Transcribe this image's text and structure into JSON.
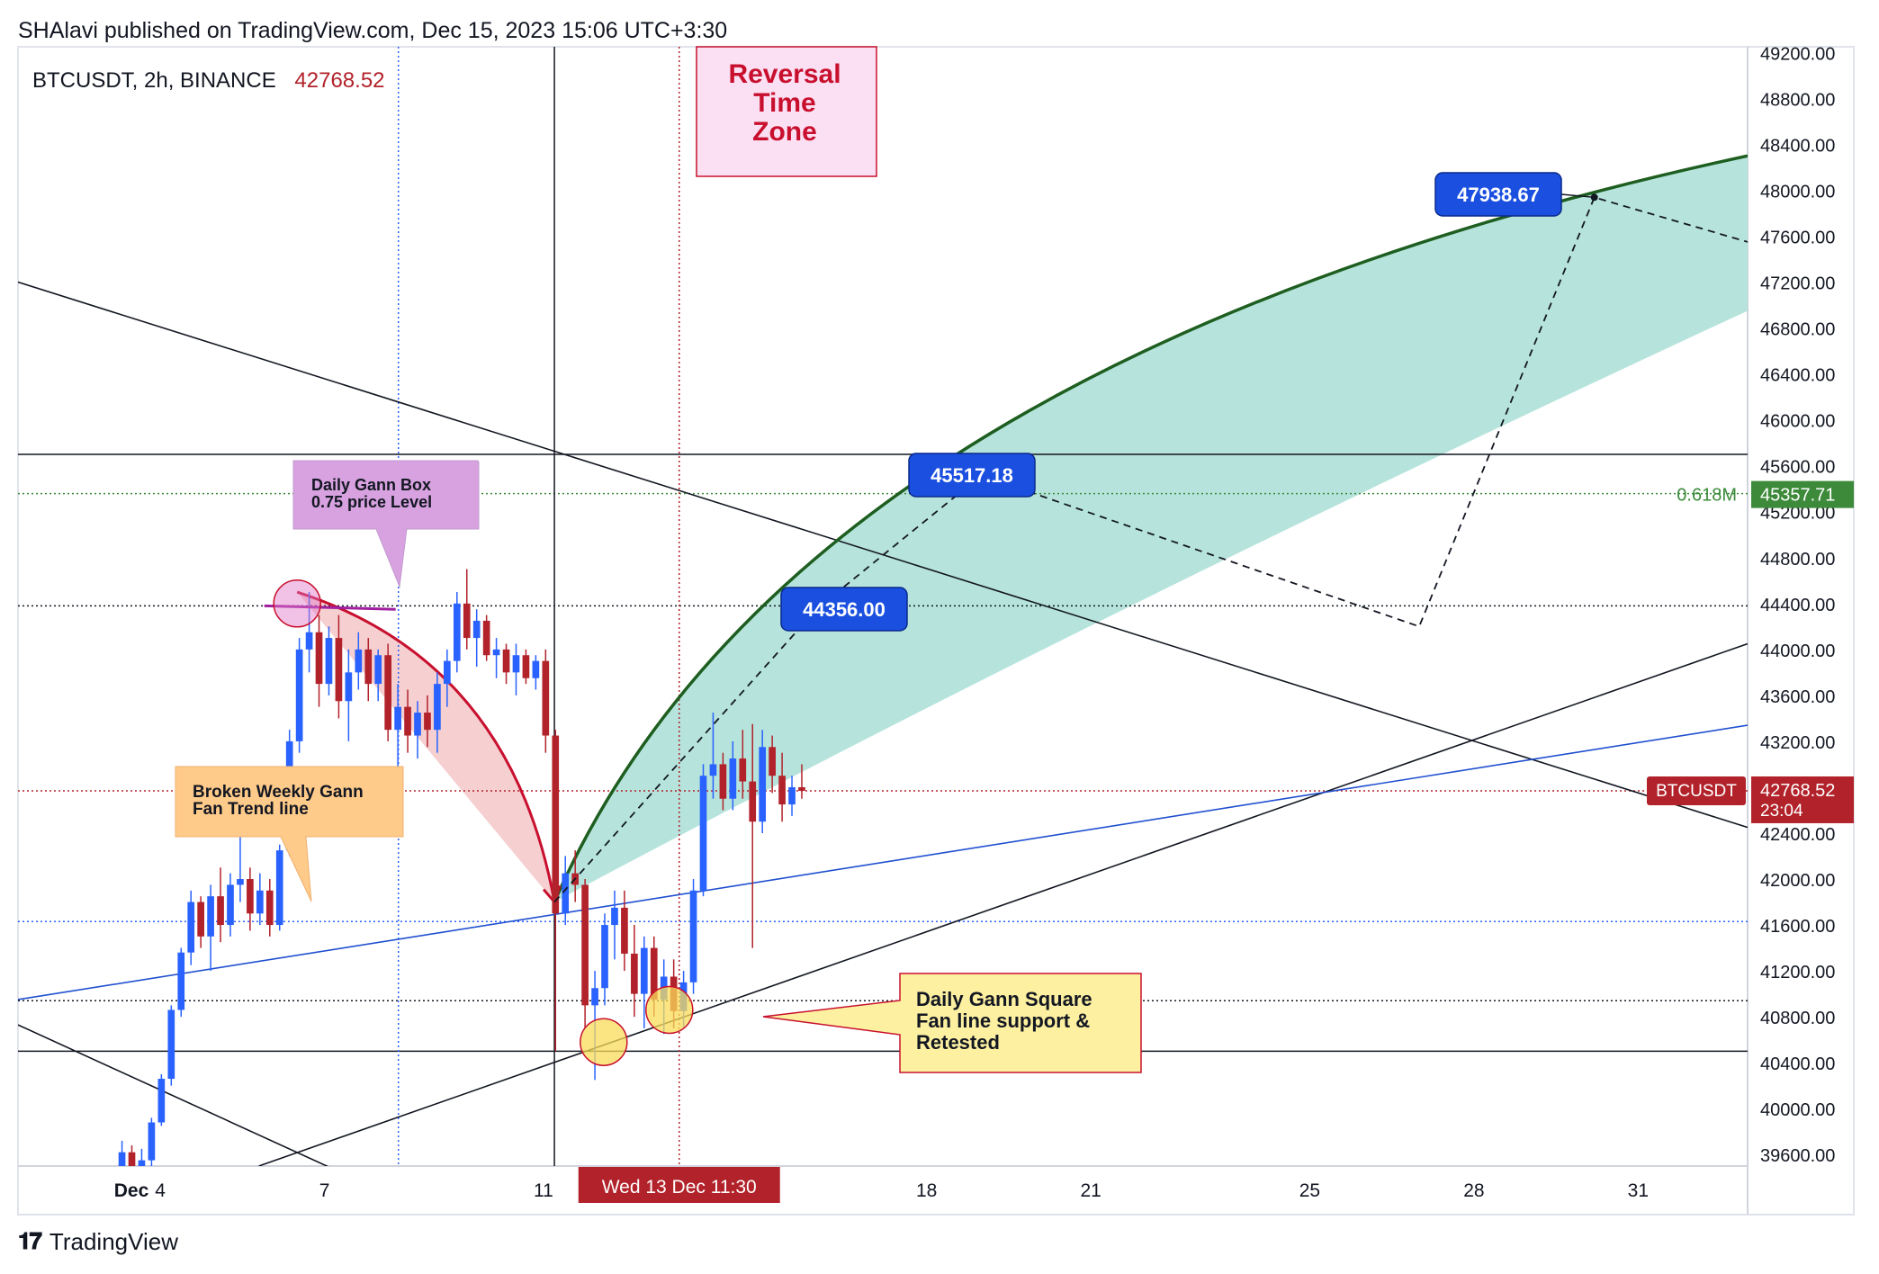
{
  "header": {
    "published": "SHAlavi published on TradingView.com, Dec 15, 2023 15:06 UTC+3:30"
  },
  "symbol": {
    "name": "BTCUSDT, 2h, BINANCE",
    "last_price": "42768.52"
  },
  "footer": {
    "brand": "TradingView",
    "logo_icon": "tradingview-logo-icon"
  },
  "colors": {
    "bull": "#2962ff",
    "bear": "#b2222a",
    "arc_green": "#1e5e20",
    "fan_fill": "#b2e3da",
    "gann_blue": "#2050d0",
    "retrace_fill": "#f4c7c9",
    "label_blue": "#1a4fe0"
  },
  "chart_data": {
    "type": "candlestick",
    "symbol": "BTCUSDT",
    "interval": "2h",
    "exchange": "BINANCE",
    "ylim": [
      39500,
      49250
    ],
    "xlim": [
      1.4,
      33.0
    ],
    "y_ticks": [
      "49200.00",
      "48800.00",
      "48400.00",
      "48000.00",
      "47600.00",
      "47200.00",
      "46800.00",
      "46400.00",
      "46000.00",
      "45600.00",
      "45200.00",
      "44800.00",
      "44400.00",
      "44000.00",
      "43600.00",
      "43200.00",
      "42800.00",
      "42400.00",
      "42000.00",
      "41600.00",
      "41200.00",
      "40800.00",
      "40400.00",
      "40000.00",
      "39600.00"
    ],
    "x_ticks": [
      {
        "label": "Dec",
        "x": 1.0
      },
      {
        "label": "4",
        "x": 4.0
      },
      {
        "label": "7",
        "x": 7.0
      },
      {
        "label": "11",
        "x": 11.0
      },
      {
        "label": "18",
        "x": 18.0
      },
      {
        "label": "21",
        "x": 21.0
      },
      {
        "label": "25",
        "x": 25.0
      },
      {
        "label": "28",
        "x": 28.0
      },
      {
        "label": "31",
        "x": 31.0
      }
    ],
    "cursor_date_label": "Wed 13 Dec   11:30",
    "cursor_x": 13.48,
    "price_badges": [
      {
        "label": "42768.52",
        "sub": "23:04",
        "y": 42768.52,
        "color": "#b2222a"
      },
      {
        "label": "45357.71",
        "y": 45357.71,
        "color": "#3c8a3a"
      }
    ],
    "symbol_badge": "BTCUSDT",
    "fib_label": {
      "text": "0.618M",
      "y": 45357.71
    },
    "horizontal_lines": [
      {
        "y": 45700,
        "style": "solid",
        "color": "#131722"
      },
      {
        "y": 44380,
        "style": "dotted",
        "color": "#131722"
      },
      {
        "y": 41630,
        "style": "dotted",
        "color": "#2962ff"
      },
      {
        "y": 40940,
        "style": "dotted",
        "color": "#131722"
      },
      {
        "y": 40500,
        "style": "solid",
        "color": "#131722"
      },
      {
        "y": 45357.71,
        "style": "dotted",
        "color": "#3c8a3a"
      },
      {
        "y": 42768.52,
        "style": "dotted",
        "color": "#b2222a"
      }
    ],
    "vertical_lines": [
      {
        "x": 8.35,
        "style": "dotted",
        "color": "#2962ff"
      },
      {
        "x": 11.2,
        "style": "solid",
        "color": "#131722"
      },
      {
        "x": 13.48,
        "style": "dotted",
        "color": "#b2222a"
      }
    ],
    "trend_lines": [
      {
        "from": [
          1.4,
          47200
        ],
        "to": [
          33.0,
          42450
        ],
        "color": "#131722"
      },
      {
        "from": [
          1.4,
          40730
        ],
        "to": [
          7.5,
          39400
        ],
        "color": "#131722"
      },
      {
        "from": [
          5.8,
          39500
        ],
        "to": [
          33.0,
          44050
        ],
        "color": "#131722"
      },
      {
        "from": [
          1.4,
          40950
        ],
        "to": [
          33.0,
          43340
        ],
        "color": "#2050d0"
      }
    ],
    "price_targets": [
      {
        "label": "47938.67",
        "x": 30.2,
        "y": 47938.67
      },
      {
        "label": "45517.18",
        "x": 19.0,
        "y": 45517.18
      },
      {
        "label": "44356.00",
        "x": 16.0,
        "y": 44356.0
      }
    ],
    "projection_path": [
      [
        11.2,
        41800
      ],
      [
        16.0,
        44356
      ],
      [
        19.0,
        45517
      ],
      [
        27.0,
        44200
      ],
      [
        30.2,
        47938
      ],
      [
        33.0,
        47550
      ]
    ],
    "annotations": [
      {
        "lines": [
          "Reversal",
          "Time",
          "Zone"
        ],
        "kind": "time-zone"
      },
      {
        "lines": [
          "Daily Gann Box",
          "0.75 price Level"
        ],
        "kind": "purple"
      },
      {
        "lines": [
          "Broken Weekly Gann",
          "Fan Trend line"
        ],
        "kind": "orange"
      },
      {
        "lines": [
          "Daily Gann Square",
          " Fan line support  &",
          "Retested"
        ],
        "kind": "yellow"
      }
    ],
    "candles": [
      {
        "t": 3.3,
        "o": 39400,
        "h": 39720,
        "l": 39300,
        "c": 39620
      },
      {
        "t": 3.48,
        "o": 39620,
        "h": 39680,
        "l": 39420,
        "c": 39460
      },
      {
        "t": 3.66,
        "o": 39460,
        "h": 39650,
        "l": 39380,
        "c": 39550
      },
      {
        "t": 3.84,
        "o": 39550,
        "h": 39920,
        "l": 39500,
        "c": 39880
      },
      {
        "t": 4.02,
        "o": 39880,
        "h": 40300,
        "l": 39850,
        "c": 40260
      },
      {
        "t": 4.2,
        "o": 40260,
        "h": 40900,
        "l": 40200,
        "c": 40860
      },
      {
        "t": 4.38,
        "o": 40860,
        "h": 41400,
        "l": 40800,
        "c": 41360
      },
      {
        "t": 4.56,
        "o": 41360,
        "h": 41900,
        "l": 41250,
        "c": 41800
      },
      {
        "t": 4.74,
        "o": 41800,
        "h": 41850,
        "l": 41400,
        "c": 41500
      },
      {
        "t": 4.92,
        "o": 41500,
        "h": 41950,
        "l": 41200,
        "c": 41850
      },
      {
        "t": 5.1,
        "o": 41850,
        "h": 42100,
        "l": 41450,
        "c": 41600
      },
      {
        "t": 5.28,
        "o": 41600,
        "h": 42050,
        "l": 41500,
        "c": 41950
      },
      {
        "t": 5.46,
        "o": 41950,
        "h": 42400,
        "l": 41800,
        "c": 42000
      },
      {
        "t": 5.64,
        "o": 42000,
        "h": 42100,
        "l": 41550,
        "c": 41700
      },
      {
        "t": 5.82,
        "o": 41700,
        "h": 42050,
        "l": 41600,
        "c": 41900
      },
      {
        "t": 6.0,
        "o": 41900,
        "h": 42000,
        "l": 41500,
        "c": 41600
      },
      {
        "t": 6.18,
        "o": 41600,
        "h": 42300,
        "l": 41550,
        "c": 42250
      },
      {
        "t": 6.36,
        "o": 42250,
        "h": 43300,
        "l": 42200,
        "c": 43200
      },
      {
        "t": 6.54,
        "o": 43200,
        "h": 44100,
        "l": 43100,
        "c": 44000
      },
      {
        "t": 6.72,
        "o": 44000,
        "h": 44500,
        "l": 43800,
        "c": 44150
      },
      {
        "t": 6.9,
        "o": 44150,
        "h": 44300,
        "l": 43500,
        "c": 43700
      },
      {
        "t": 7.08,
        "o": 43700,
        "h": 44200,
        "l": 43600,
        "c": 44100
      },
      {
        "t": 7.26,
        "o": 44100,
        "h": 44300,
        "l": 43400,
        "c": 43550
      },
      {
        "t": 7.44,
        "o": 43550,
        "h": 44000,
        "l": 43200,
        "c": 43800
      },
      {
        "t": 7.62,
        "o": 43800,
        "h": 44150,
        "l": 43650,
        "c": 44000
      },
      {
        "t": 7.8,
        "o": 44000,
        "h": 44100,
        "l": 43550,
        "c": 43700
      },
      {
        "t": 7.98,
        "o": 43700,
        "h": 44000,
        "l": 43550,
        "c": 43950
      },
      {
        "t": 8.16,
        "o": 43950,
        "h": 44050,
        "l": 43200,
        "c": 43300
      },
      {
        "t": 8.34,
        "o": 43300,
        "h": 43700,
        "l": 42900,
        "c": 43500
      },
      {
        "t": 8.52,
        "o": 43500,
        "h": 43650,
        "l": 43100,
        "c": 43250
      },
      {
        "t": 8.7,
        "o": 43250,
        "h": 43550,
        "l": 43050,
        "c": 43450
      },
      {
        "t": 8.88,
        "o": 43450,
        "h": 43600,
        "l": 43150,
        "c": 43300
      },
      {
        "t": 9.06,
        "o": 43300,
        "h": 43800,
        "l": 43100,
        "c": 43700
      },
      {
        "t": 9.24,
        "o": 43700,
        "h": 44000,
        "l": 43500,
        "c": 43900
      },
      {
        "t": 9.42,
        "o": 43900,
        "h": 44500,
        "l": 43800,
        "c": 44400
      },
      {
        "t": 9.6,
        "o": 44400,
        "h": 44700,
        "l": 44000,
        "c": 44100
      },
      {
        "t": 9.78,
        "o": 44100,
        "h": 44350,
        "l": 43850,
        "c": 44250
      },
      {
        "t": 9.96,
        "o": 44250,
        "h": 44300,
        "l": 43900,
        "c": 43950
      },
      {
        "t": 10.14,
        "o": 43950,
        "h": 44100,
        "l": 43750,
        "c": 44000
      },
      {
        "t": 10.32,
        "o": 44000,
        "h": 44050,
        "l": 43700,
        "c": 43800
      },
      {
        "t": 10.5,
        "o": 43800,
        "h": 44050,
        "l": 43600,
        "c": 43950
      },
      {
        "t": 10.68,
        "o": 43950,
        "h": 44000,
        "l": 43700,
        "c": 43750
      },
      {
        "t": 10.86,
        "o": 43750,
        "h": 43950,
        "l": 43650,
        "c": 43900
      },
      {
        "t": 11.04,
        "o": 43900,
        "h": 44000,
        "l": 43100,
        "c": 43250
      },
      {
        "t": 11.22,
        "o": 43250,
        "h": 43300,
        "l": 40500,
        "c": 41700
      },
      {
        "t": 11.4,
        "o": 41700,
        "h": 42200,
        "l": 41600,
        "c": 42050
      },
      {
        "t": 11.58,
        "o": 42050,
        "h": 42250,
        "l": 41800,
        "c": 41950
      },
      {
        "t": 11.76,
        "o": 41950,
        "h": 42000,
        "l": 40700,
        "c": 40900
      },
      {
        "t": 11.94,
        "o": 40900,
        "h": 41200,
        "l": 40250,
        "c": 41050
      },
      {
        "t": 12.12,
        "o": 41050,
        "h": 41700,
        "l": 40900,
        "c": 41600
      },
      {
        "t": 12.3,
        "o": 41600,
        "h": 41900,
        "l": 41300,
        "c": 41750
      },
      {
        "t": 12.48,
        "o": 41750,
        "h": 41900,
        "l": 41200,
        "c": 41350
      },
      {
        "t": 12.66,
        "o": 41350,
        "h": 41600,
        "l": 40800,
        "c": 41000
      },
      {
        "t": 12.84,
        "o": 41000,
        "h": 41500,
        "l": 40700,
        "c": 41400
      },
      {
        "t": 13.02,
        "o": 41400,
        "h": 41500,
        "l": 40800,
        "c": 40950
      },
      {
        "t": 13.2,
        "o": 40950,
        "h": 41300,
        "l": 40650,
        "c": 41150
      },
      {
        "t": 13.38,
        "o": 41150,
        "h": 41300,
        "l": 40700,
        "c": 40850
      },
      {
        "t": 13.56,
        "o": 40850,
        "h": 41200,
        "l": 40700,
        "c": 41100
      },
      {
        "t": 13.74,
        "o": 41100,
        "h": 42000,
        "l": 41000,
        "c": 41900
      },
      {
        "t": 13.92,
        "o": 41900,
        "h": 43000,
        "l": 41850,
        "c": 42900
      },
      {
        "t": 14.1,
        "o": 42900,
        "h": 43450,
        "l": 42700,
        "c": 43000
      },
      {
        "t": 14.28,
        "o": 43000,
        "h": 43100,
        "l": 42600,
        "c": 42700
      },
      {
        "t": 14.46,
        "o": 42700,
        "h": 43200,
        "l": 42600,
        "c": 43050
      },
      {
        "t": 14.64,
        "o": 43050,
        "h": 43300,
        "l": 42700,
        "c": 42850
      },
      {
        "t": 14.82,
        "o": 42850,
        "h": 43350,
        "l": 41400,
        "c": 42500
      },
      {
        "t": 15.0,
        "o": 42500,
        "h": 43300,
        "l": 42400,
        "c": 43150
      },
      {
        "t": 15.18,
        "o": 43150,
        "h": 43250,
        "l": 42750,
        "c": 42900
      },
      {
        "t": 15.36,
        "o": 42900,
        "h": 43100,
        "l": 42500,
        "c": 42650
      },
      {
        "t": 15.54,
        "o": 42650,
        "h": 42900,
        "l": 42550,
        "c": 42800
      },
      {
        "t": 15.72,
        "o": 42800,
        "h": 43000,
        "l": 42700,
        "c": 42768.52
      }
    ]
  }
}
